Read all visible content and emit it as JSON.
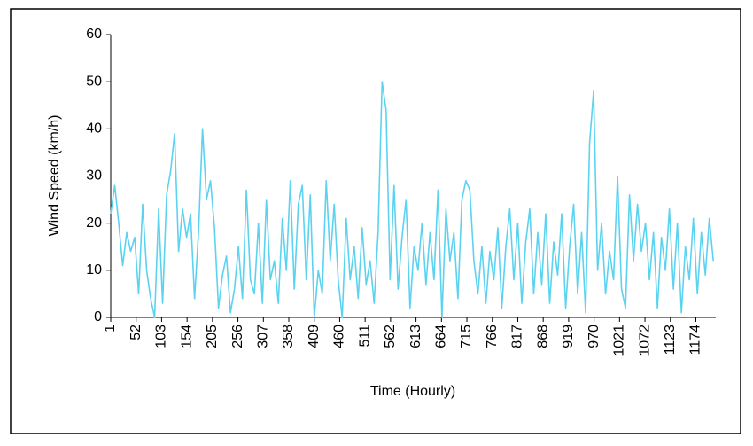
{
  "chart_data": {
    "type": "line",
    "x_label": "Time (Hourly)",
    "y_label": "Wind Speed (km/h)",
    "xlim": [
      1,
      1214
    ],
    "xticks": [
      1,
      52,
      103,
      154,
      205,
      256,
      307,
      358,
      409,
      460,
      511,
      562,
      613,
      664,
      715,
      766,
      817,
      868,
      919,
      970,
      1021,
      1072,
      1123,
      1174
    ],
    "ylim": [
      0,
      60
    ],
    "yticks": [
      0,
      10,
      20,
      30,
      40,
      50,
      60
    ],
    "grid": false,
    "x": [
      1,
      9,
      17,
      25,
      33,
      41,
      49,
      57,
      65,
      73,
      81,
      89,
      97,
      105,
      113,
      121,
      129,
      137,
      145,
      153,
      161,
      169,
      177,
      185,
      193,
      201,
      209,
      217,
      225,
      233,
      241,
      249,
      257,
      265,
      273,
      281,
      289,
      297,
      305,
      313,
      321,
      329,
      337,
      345,
      353,
      361,
      369,
      377,
      385,
      393,
      401,
      409,
      417,
      425,
      433,
      441,
      449,
      457,
      465,
      473,
      481,
      489,
      497,
      505,
      513,
      521,
      529,
      537,
      545,
      553,
      561,
      569,
      577,
      585,
      593,
      601,
      609,
      617,
      625,
      633,
      641,
      649,
      657,
      665,
      673,
      681,
      689,
      697,
      705,
      713,
      721,
      729,
      737,
      745,
      753,
      761,
      769,
      777,
      785,
      793,
      801,
      809,
      817,
      825,
      833,
      841,
      849,
      857,
      865,
      873,
      881,
      889,
      897,
      905,
      913,
      921,
      929,
      937,
      945,
      953,
      961,
      969,
      977,
      985,
      993,
      1001,
      1009,
      1017,
      1025,
      1033,
      1041,
      1049,
      1057,
      1065,
      1073,
      1081,
      1089,
      1097,
      1105,
      1113,
      1121,
      1129,
      1137,
      1145,
      1153,
      1161,
      1169,
      1177,
      1185,
      1193,
      1201,
      1209
    ],
    "series": [
      {
        "color": "#5bd3f0",
        "values": [
          22,
          28,
          20,
          11,
          18,
          14,
          17,
          5,
          24,
          10,
          4,
          0,
          23,
          3,
          26,
          31,
          39,
          14,
          23,
          17,
          22,
          4,
          18,
          40,
          25,
          29,
          19,
          2,
          9,
          13,
          1,
          6,
          15,
          4,
          27,
          8,
          5,
          20,
          3,
          25,
          8,
          12,
          3,
          21,
          10,
          29,
          6,
          24,
          28,
          8,
          26,
          0,
          10,
          5,
          29,
          12,
          24,
          8,
          0,
          21,
          8,
          15,
          4,
          19,
          7,
          12,
          3,
          18,
          50,
          44,
          8,
          28,
          6,
          17,
          25,
          2,
          15,
          10,
          20,
          7,
          18,
          8,
          27,
          0,
          23,
          12,
          18,
          4,
          25,
          29,
          27,
          12,
          5,
          15,
          3,
          14,
          8,
          19,
          2,
          15,
          23,
          8,
          20,
          3,
          16,
          23,
          5,
          18,
          7,
          22,
          3,
          16,
          9,
          22,
          2,
          15,
          24,
          5,
          18,
          1,
          37,
          48,
          10,
          20,
          5,
          14,
          8,
          30,
          6,
          2,
          26,
          12,
          24,
          14,
          20,
          8,
          18,
          2,
          17,
          10,
          23,
          6,
          20,
          1,
          15,
          8,
          21,
          5,
          18,
          9,
          21,
          12
        ]
      }
    ]
  }
}
